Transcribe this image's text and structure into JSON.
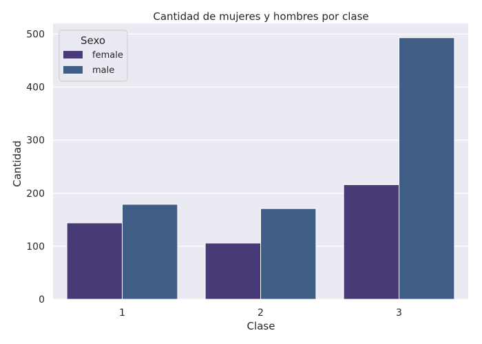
{
  "chart_data": {
    "type": "bar",
    "title": "Cantidad de mujeres y hombres por clase",
    "xlabel": "Clase",
    "ylabel": "Cantidad",
    "categories": [
      "1",
      "2",
      "3"
    ],
    "series": [
      {
        "name": "female",
        "values": [
          144,
          106,
          216
        ],
        "color": "#483a76"
      },
      {
        "name": "male",
        "values": [
          179,
          171,
          493
        ],
        "color": "#3f5e85"
      }
    ],
    "ylim": [
      0,
      520
    ],
    "yticks": [
      0,
      100,
      200,
      300,
      400,
      500
    ],
    "grid": true,
    "legend": {
      "title": "Sexo",
      "placement": "top-left"
    },
    "colors": {
      "background": "#eaeaf2",
      "grid": "#ffffff"
    }
  }
}
